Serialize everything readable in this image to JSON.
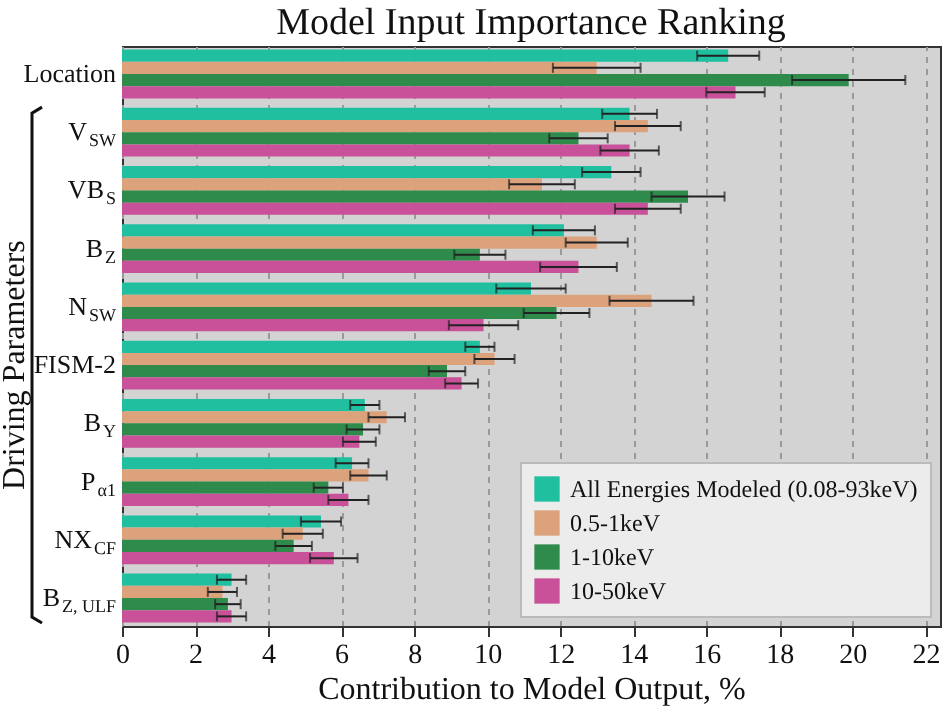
{
  "chart_data": {
    "type": "bar",
    "orientation": "horizontal",
    "title": "Model Input Importance Ranking",
    "xlabel": "Contribution to Model Output, %",
    "ylabel": "Driving Parameters",
    "categories": [
      "Location",
      "V$_{SW}$",
      "VB$_{S}$",
      "B$_{Z}$",
      "N$_{SW}$",
      "FISM-2",
      "B$_{Y}$",
      "P$_{α1}$",
      "NX$_{CF}$",
      "B$_{Z, ULF}$"
    ],
    "series": [
      {
        "name": "All Energies Modeled (0.08-93keV)",
        "color": "#1fbf9f",
        "values": [
          16.6,
          13.9,
          13.4,
          12.1,
          11.2,
          9.8,
          6.65,
          6.3,
          5.45,
          3.0
        ],
        "errors": [
          0.85,
          0.75,
          0.8,
          0.85,
          0.95,
          0.4,
          0.4,
          0.45,
          0.55,
          0.4
        ]
      },
      {
        "name": "0.5-1keV",
        "color": "#dba27c",
        "values": [
          13.0,
          14.4,
          11.5,
          13.0,
          14.5,
          10.2,
          7.25,
          6.75,
          4.95,
          2.75
        ],
        "errors": [
          1.2,
          0.9,
          0.9,
          0.85,
          1.15,
          0.55,
          0.5,
          0.5,
          0.55,
          0.4
        ]
      },
      {
        "name": "1-10keV",
        "color": "#2e8b4c",
        "values": [
          19.9,
          12.5,
          15.5,
          9.8,
          11.9,
          8.9,
          6.6,
          5.65,
          4.7,
          2.9
        ],
        "errors": [
          1.55,
          0.8,
          1.0,
          0.7,
          0.9,
          0.5,
          0.45,
          0.4,
          0.5,
          0.35
        ]
      },
      {
        "name": "10-50keV",
        "color": "#c9519a",
        "values": [
          16.8,
          13.9,
          14.4,
          12.5,
          9.9,
          9.3,
          6.5,
          6.2,
          5.8,
          3.0
        ],
        "errors": [
          0.8,
          0.8,
          0.9,
          1.05,
          0.95,
          0.45,
          0.45,
          0.55,
          0.65,
          0.4
        ]
      }
    ],
    "xlim": [
      0,
      22.4
    ],
    "xticks": [
      0,
      2,
      4,
      6,
      8,
      10,
      12,
      14,
      16,
      18,
      20,
      22
    ],
    "grid": "x",
    "legend": "bottom right"
  }
}
